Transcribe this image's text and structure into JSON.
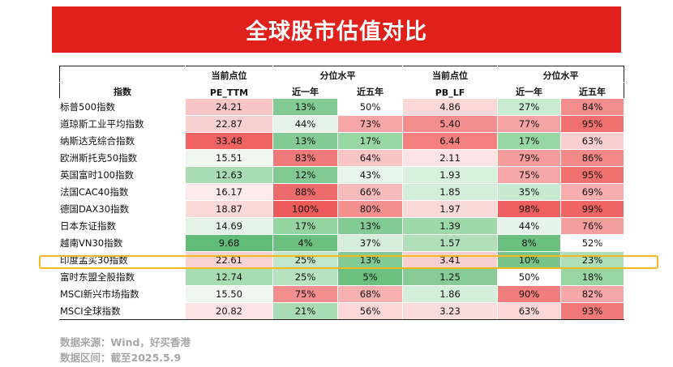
{
  "title": "全球股市估值对比",
  "headers": {
    "index": "指数",
    "pe_group": "当前点位",
    "pe_sub": "PE_TTM",
    "pct_group": "分位水平",
    "one_year": "近一年",
    "five_year": "近五年",
    "pb_group": "当前点位",
    "pb_sub": "PB_LF"
  },
  "highlighted_row": "印度孟买30指数",
  "chart_data": {
    "type": "table",
    "title": "全球股市估值对比",
    "columns": [
      "指数",
      "PE_TTM",
      "PE 近一年",
      "PE 近五年",
      "PB_LF",
      "PB 近一年",
      "PB 近五年"
    ],
    "rows": [
      {
        "name": "标普500指数",
        "pe": "24.21",
        "pe_1y": "13%",
        "pe_5y": "50%",
        "pb": "4.86",
        "pb_1y": "27%",
        "pb_5y": "84%"
      },
      {
        "name": "道琼斯工业平均指数",
        "pe": "22.87",
        "pe_1y": "44%",
        "pe_5y": "73%",
        "pb": "5.40",
        "pb_1y": "77%",
        "pb_5y": "95%"
      },
      {
        "name": "纳斯达克综合指数",
        "pe": "33.48",
        "pe_1y": "13%",
        "pe_5y": "17%",
        "pb": "6.44",
        "pb_1y": "17%",
        "pb_5y": "63%"
      },
      {
        "name": "欧洲斯托克50指数",
        "pe": "15.51",
        "pe_1y": "83%",
        "pe_5y": "64%",
        "pb": "2.11",
        "pb_1y": "79%",
        "pb_5y": "86%"
      },
      {
        "name": "英国富时100指数",
        "pe": "12.63",
        "pe_1y": "12%",
        "pe_5y": "43%",
        "pb": "1.93",
        "pb_1y": "75%",
        "pb_5y": "95%"
      },
      {
        "name": "法国CAC40指数",
        "pe": "16.17",
        "pe_1y": "88%",
        "pe_5y": "66%",
        "pb": "1.85",
        "pb_1y": "35%",
        "pb_5y": "69%"
      },
      {
        "name": "德国DAX30指数",
        "pe": "18.87",
        "pe_1y": "100%",
        "pe_5y": "80%",
        "pb": "1.97",
        "pb_1y": "98%",
        "pb_5y": "99%"
      },
      {
        "name": "日本东证指数",
        "pe": "14.69",
        "pe_1y": "17%",
        "pe_5y": "13%",
        "pb": "1.39",
        "pb_1y": "44%",
        "pb_5y": "76%"
      },
      {
        "name": "越南VN30指数",
        "pe": "9.68",
        "pe_1y": "4%",
        "pe_5y": "37%",
        "pb": "1.57",
        "pb_1y": "8%",
        "pb_5y": "52%"
      },
      {
        "name": "印度孟买30指数",
        "pe": "22.61",
        "pe_1y": "25%",
        "pe_5y": "13%",
        "pb": "3.41",
        "pb_1y": "10%",
        "pb_5y": "23%"
      },
      {
        "name": "富时东盟全股指数",
        "pe": "12.74",
        "pe_1y": "25%",
        "pe_5y": "5%",
        "pb": "1.25",
        "pb_1y": "50%",
        "pb_5y": "18%"
      },
      {
        "name": "MSCI新兴市场指数",
        "pe": "15.50",
        "pe_1y": "75%",
        "pe_5y": "68%",
        "pb": "1.86",
        "pb_1y": "90%",
        "pb_5y": "82%"
      },
      {
        "name": "MSCI全球指数",
        "pe": "20.82",
        "pe_1y": "21%",
        "pe_5y": "56%",
        "pb": "3.23",
        "pb_1y": "63%",
        "pb_5y": "93%"
      }
    ],
    "cell_colors": [
      [
        "#f7c5c5",
        "#83cb94",
        "#ffffff",
        "#fbd7d7",
        "#c9ebcf",
        "#f38c8c"
      ],
      [
        "#f9d0d0",
        "#e6f5e8",
        "#f7a6a6",
        "#f48e8e",
        "#f6a3a3",
        "#f06f6f"
      ],
      [
        "#f06363",
        "#83cb94",
        "#98d7a4",
        "#f37f7f",
        "#98d7a4",
        "#f9cfcf"
      ],
      [
        "#eef8ef",
        "#f07a7a",
        "#f8c4c4",
        "#fce4e4",
        "#f59b9b",
        "#f38989"
      ],
      [
        "#a9dcb4",
        "#82ca93",
        "#e8f5ea",
        "#d7f1dc",
        "#f6a7a7",
        "#f06f6f"
      ],
      [
        "#fdeaea",
        "#ee6b6b",
        "#f8bbbb",
        "#d4efd9",
        "#c7ead0",
        "#f7aeae"
      ],
      [
        "#fbd9d9",
        "#ec5a5a",
        "#f38f8f",
        "#fad9d9",
        "#ee6060",
        "#ef6464"
      ],
      [
        "#e3f3e6",
        "#95d4a1",
        "#83cb94",
        "#9ed9aa",
        "#e6f5e8",
        "#f59e9e"
      ],
      [
        "#61bc77",
        "#6bc07f",
        "#d7eedb",
        "#b0dfba",
        "#6bc07f",
        "#ffffff"
      ],
      [
        "#f9d2d2",
        "#c1e6c9",
        "#83cb94",
        "#f9d0d0",
        "#77c589",
        "#aedfb8"
      ],
      [
        "#a7dcb2",
        "#b6e2bf",
        "#6bc07f",
        "#87cc97",
        "#ffffff",
        "#97d6a3"
      ],
      [
        "#eef8ef",
        "#f48e8e",
        "#f7b0b0",
        "#d4efd9",
        "#f27d7d",
        "#f6a7a7"
      ],
      [
        "#fce2e2",
        "#a9dcb4",
        "#fbd7d7",
        "#fbdcdc",
        "#fbd7d7",
        "#f07878"
      ]
    ]
  },
  "footer": {
    "source": "数据来源：Wind，好买香港",
    "period": "数据区间：截至2025.5.9"
  }
}
